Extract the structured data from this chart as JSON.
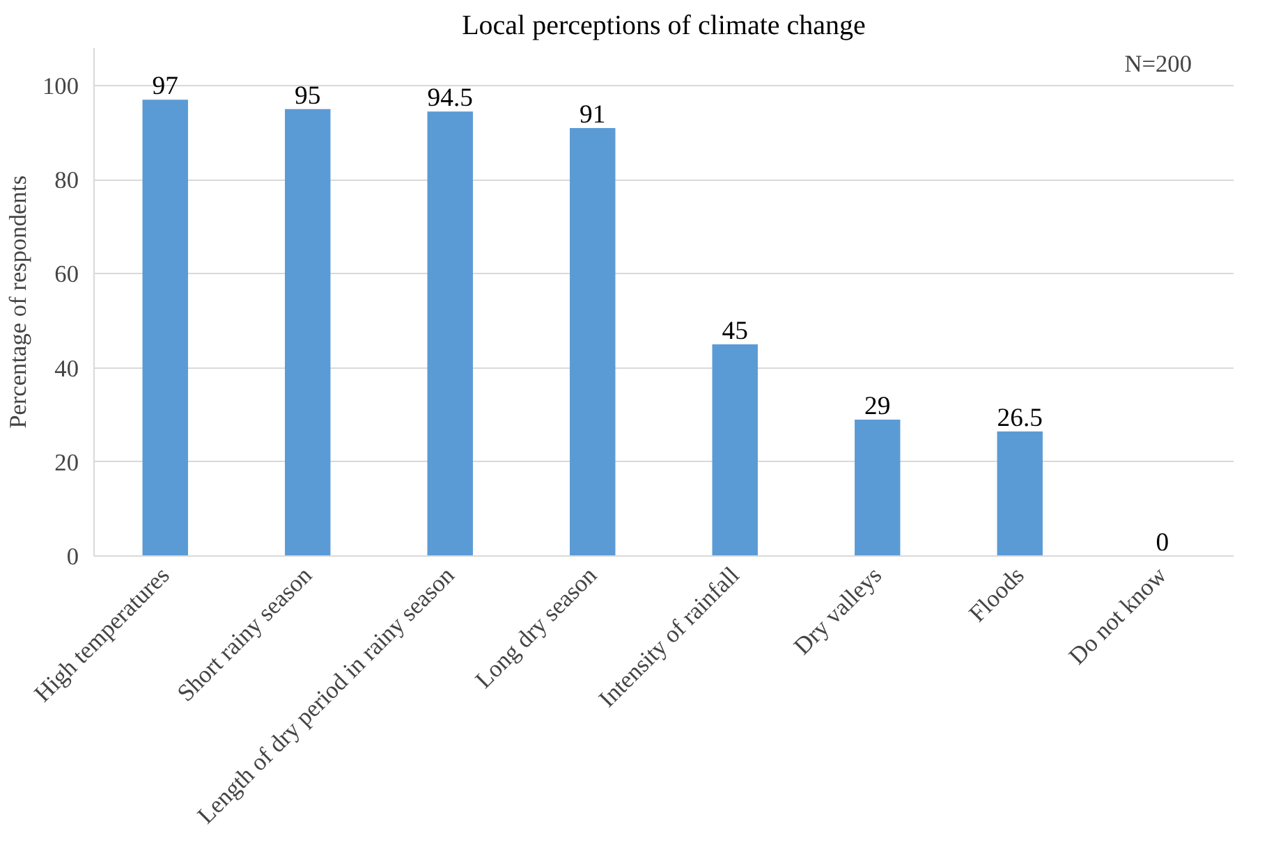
{
  "chart_data": {
    "type": "bar",
    "title": "Local perceptions of climate change",
    "ylabel": "Percentage of respondents",
    "categories": [
      "High temperatures",
      "Short rainy season",
      "Length of dry period in rainy season",
      "Long dry season",
      "Intensity of rainfall",
      "Dry valleys",
      "Floods",
      "Do not know"
    ],
    "values": [
      97,
      95,
      94.5,
      91,
      45,
      29,
      26.5,
      0
    ],
    "color": "#5b9bd5",
    "ylim": [
      0,
      108
    ],
    "yticks": [
      0,
      20,
      40,
      60,
      80,
      100
    ],
    "grid": "y",
    "data_labels": true,
    "annotations": [
      "N=200"
    ]
  }
}
